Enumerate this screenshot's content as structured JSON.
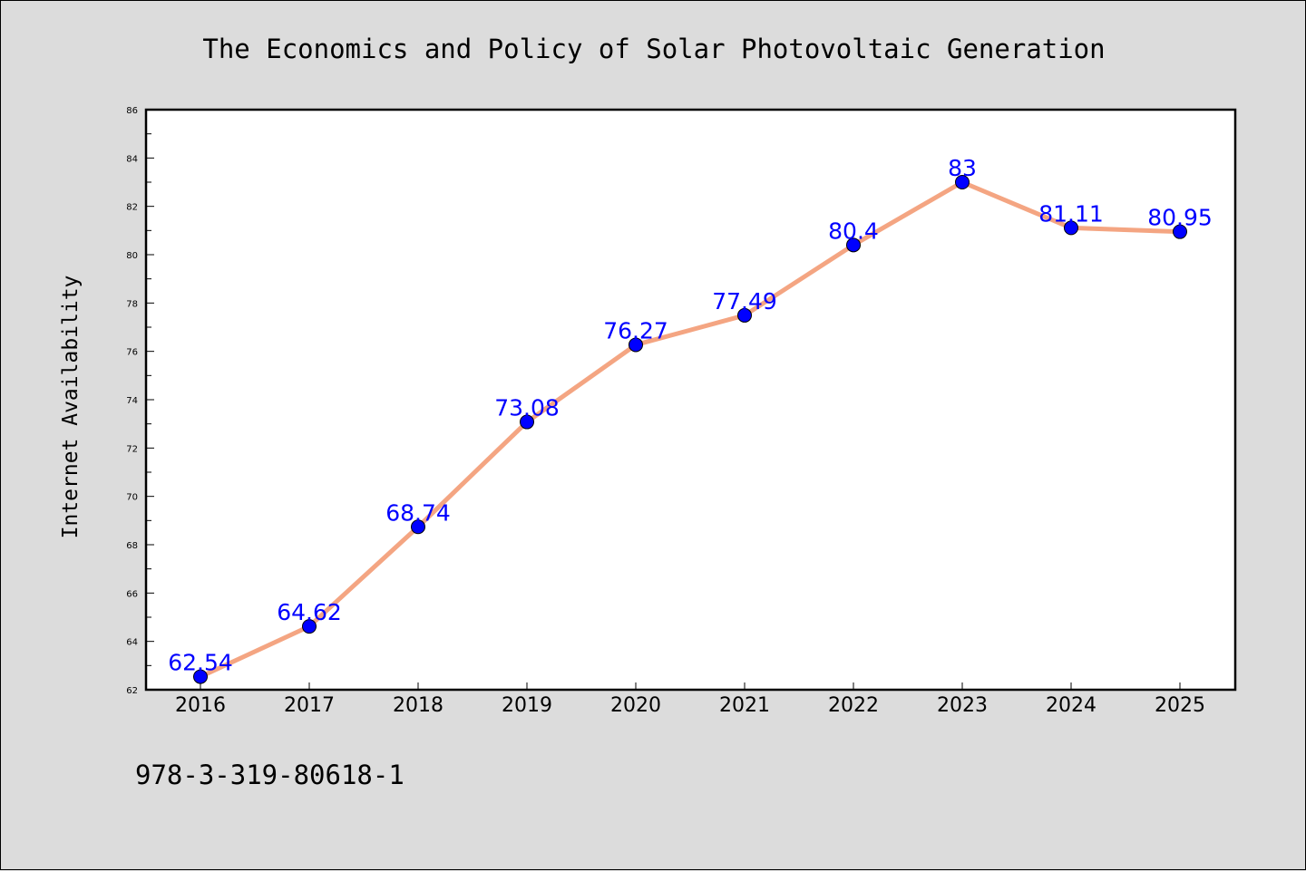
{
  "chart_data": {
    "type": "line",
    "title": "The Economics and Policy of Solar Photovoltaic Generation",
    "xlabel": "",
    "ylabel": "Internet Availability",
    "categories": [
      "2016",
      "2017",
      "2018",
      "2019",
      "2020",
      "2021",
      "2022",
      "2023",
      "2024",
      "2025"
    ],
    "series": [
      {
        "values": [
          62.54,
          64.62,
          68.74,
          73.08,
          76.27,
          77.49,
          80.4,
          83,
          81.11,
          80.95
        ],
        "labels": [
          "62.54",
          "64.62",
          "68.74",
          "73.08",
          "76.27",
          "77.49",
          "80.4",
          "83",
          "81.11",
          "80.95"
        ],
        "line_color": "#f4a582",
        "marker_color": "#0000ff"
      }
    ],
    "ylim": [
      62,
      86
    ],
    "yticks": [
      "62",
      "64",
      "66",
      "68",
      "70",
      "72",
      "74",
      "76",
      "78",
      "80",
      "82",
      "84",
      "86"
    ],
    "grid": false,
    "legend": "none"
  },
  "footer": {
    "isbn": "978-3-319-80618-1"
  }
}
